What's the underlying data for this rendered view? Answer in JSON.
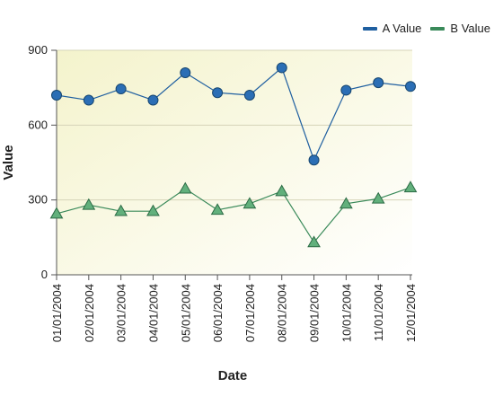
{
  "legend": {
    "a_label": "A Value",
    "b_label": "B Value"
  },
  "chart_data": {
    "type": "line",
    "xlabel": "Date",
    "ylabel": "Value",
    "categories": [
      "01/01/2004",
      "02/01/2004",
      "03/01/2004",
      "04/01/2004",
      "05/01/2004",
      "06/01/2004",
      "07/01/2004",
      "08/01/2004",
      "09/01/2004",
      "10/01/2004",
      "11/01/2004",
      "12/01/2004"
    ],
    "series": [
      {
        "name": "A Value",
        "color": "#1f5fa0",
        "marker": "circle",
        "values": [
          720,
          700,
          745,
          700,
          810,
          730,
          720,
          830,
          460,
          740,
          770,
          755
        ]
      },
      {
        "name": "B Value",
        "color": "#3a8a5a",
        "marker": "triangle",
        "values": [
          245,
          280,
          255,
          255,
          345,
          260,
          285,
          335,
          130,
          285,
          305,
          350
        ]
      }
    ],
    "ylim": [
      0,
      900
    ],
    "yticks": [
      0,
      300,
      600,
      900
    ],
    "grid": true,
    "legend_position": "top-right",
    "plot_background": "#f7f6d8"
  }
}
